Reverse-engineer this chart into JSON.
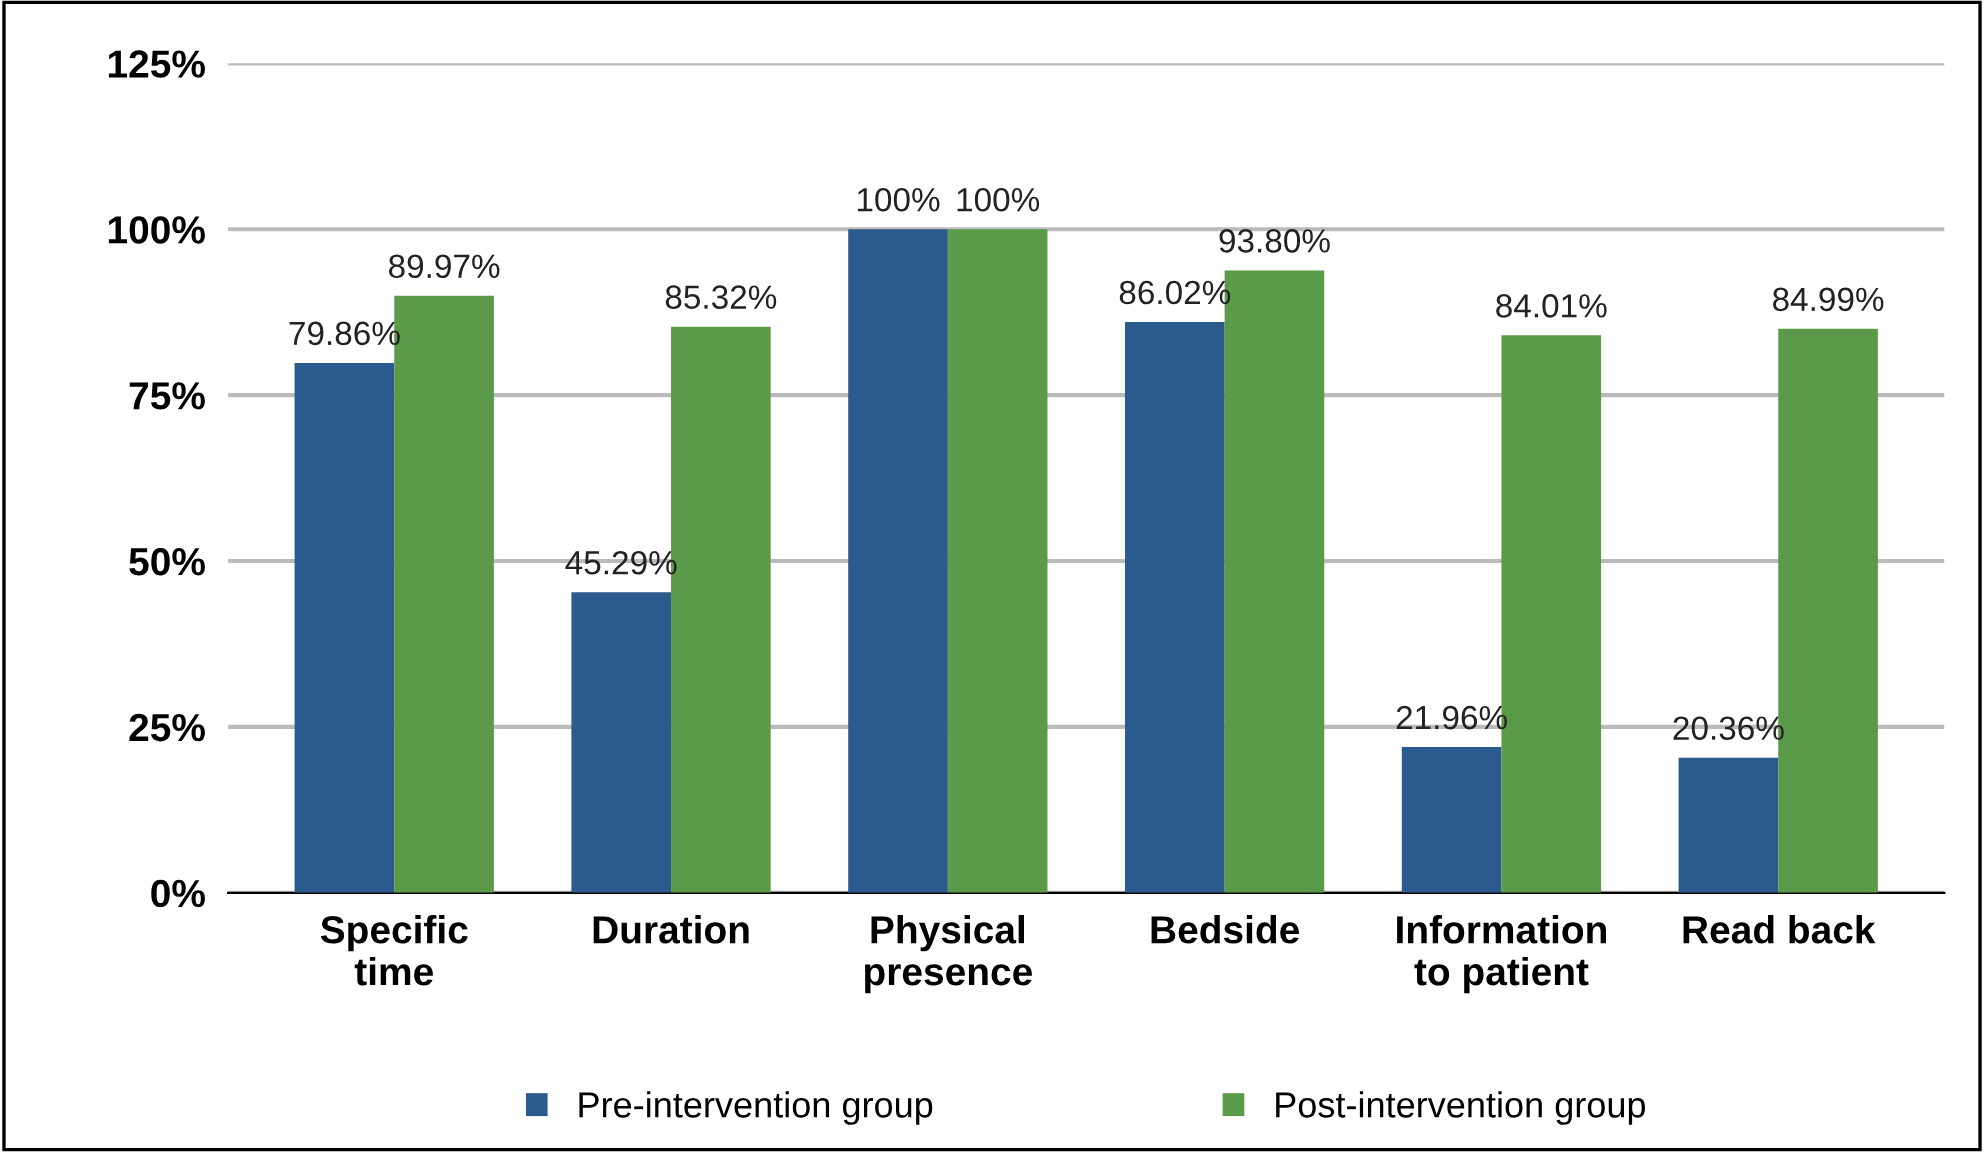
{
  "chart_data": {
    "type": "bar",
    "categories": [
      "Specific\ntime",
      "Duration",
      "Physical\npresence",
      "Bedside",
      "Information\nto patient",
      "Read back"
    ],
    "series": [
      {
        "name": "Pre-intervention group",
        "color": "#2b5a8c",
        "values": [
          79.86,
          45.29,
          100,
          86.02,
          21.96,
          20.36
        ],
        "value_labels": [
          "79.86%",
          "45.29%",
          "100%",
          "86.02%",
          "21.96%",
          "20.36%"
        ]
      },
      {
        "name": "Post-intervention group",
        "color": "#5b9a48",
        "values": [
          89.97,
          85.32,
          100,
          93.8,
          84.01,
          84.99
        ],
        "value_labels": [
          "89.97%",
          "85.32%",
          "100%",
          "93.80%",
          "84.01%",
          "84.99%"
        ]
      }
    ],
    "ylim": [
      0,
      125
    ],
    "yticks": [
      {
        "value": 0,
        "label": "0%"
      },
      {
        "value": 25,
        "label": "25%"
      },
      {
        "value": 50,
        "label": "50%"
      },
      {
        "value": 75,
        "label": "75%"
      },
      {
        "value": 100,
        "label": "100%"
      },
      {
        "value": 125,
        "label": "125%"
      }
    ],
    "grid": "y",
    "legend": "bottom"
  }
}
